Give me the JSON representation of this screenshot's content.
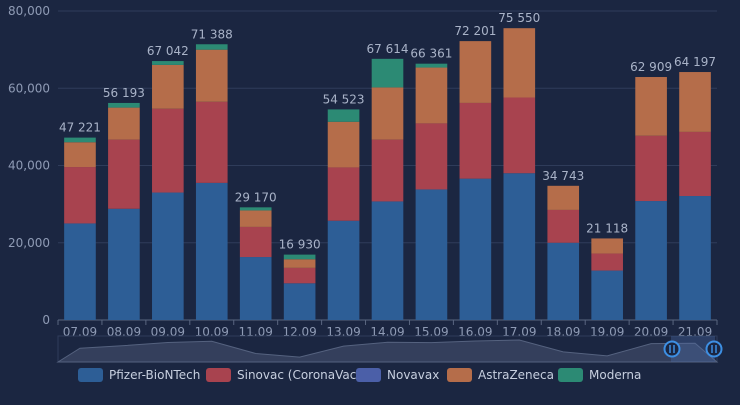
{
  "chart_data": {
    "type": "bar",
    "stacked": true,
    "categories": [
      "07.09",
      "08.09",
      "09.09",
      "10.09",
      "11.09",
      "12.09",
      "13.09",
      "14.09",
      "15.09",
      "16.09",
      "17.09",
      "18.09",
      "19.09",
      "20.09",
      "21.09"
    ],
    "series": [
      {
        "name": "Pfizer-BioNTech",
        "color": "#2d5e96",
        "values": [
          25000,
          28800,
          33000,
          35500,
          16300,
          9500,
          25700,
          30700,
          33800,
          36600,
          38000,
          20000,
          12800,
          30800,
          32100
        ]
      },
      {
        "name": "Sinovac (CoronaVac)",
        "color": "#a8434f",
        "values": [
          14600,
          17900,
          21700,
          21000,
          7800,
          4000,
          13800,
          16000,
          17100,
          19600,
          19600,
          8500,
          4400,
          16900,
          16600
        ]
      },
      {
        "name": "Novavax",
        "color": "#4b5fa8",
        "values": [
          0,
          0,
          0,
          0,
          0,
          0,
          0,
          0,
          0,
          0,
          0,
          0,
          0,
          0,
          0
        ]
      },
      {
        "name": "AstraZeneca",
        "color": "#b56d4a",
        "values": [
          6421,
          8293,
          11342,
          13488,
          4270,
          2230,
          11823,
          13514,
          14461,
          16001,
          17950,
          6243,
          3918,
          15209,
          15497
        ]
      },
      {
        "name": "Moderna",
        "color": "#2c8a74",
        "values": [
          1200,
          1200,
          1000,
          1400,
          800,
          1200,
          3200,
          7400,
          1000,
          0,
          0,
          0,
          0,
          0,
          0
        ]
      }
    ],
    "totals": [
      "47 221",
      "56 193",
      "67 042",
      "71 388",
      "29 170",
      "16 930",
      "54 523",
      "67 614",
      "66 361",
      "72 201",
      "75 550",
      "34 743",
      "21 118",
      "62 909",
      "64 197"
    ],
    "y_ticks": [
      "0",
      "20,000",
      "40,000",
      "60,000",
      "80,000"
    ],
    "ylim": [
      0,
      80000
    ],
    "grid": true,
    "legend_position": "bottom",
    "data_zoom": true
  }
}
